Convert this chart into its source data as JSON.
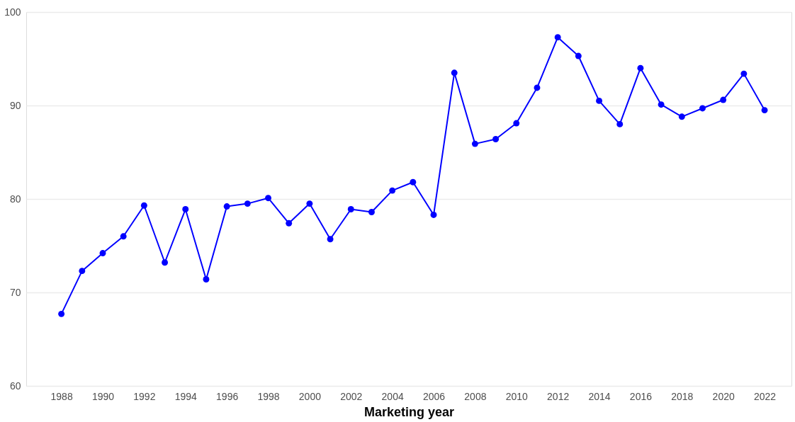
{
  "chart_data": {
    "type": "line",
    "xlabel": "Marketing year",
    "x": [
      1988,
      1989,
      1990,
      1991,
      1992,
      1993,
      1994,
      1995,
      1996,
      1997,
      1998,
      1999,
      2000,
      2001,
      2002,
      2003,
      2004,
      2005,
      2006,
      2007,
      2008,
      2009,
      2010,
      2011,
      2012,
      2013,
      2014,
      2015,
      2016,
      2017,
      2018,
      2019,
      2020,
      2021,
      2022
    ],
    "series": [
      {
        "color": "#0000ff",
        "values": [
          67.7,
          72.3,
          74.2,
          76.0,
          79.3,
          73.2,
          78.9,
          71.4,
          79.2,
          79.5,
          80.1,
          77.4,
          79.5,
          75.7,
          78.9,
          78.6,
          80.9,
          81.8,
          78.3,
          93.5,
          85.9,
          86.4,
          88.1,
          91.9,
          97.3,
          95.3,
          90.5,
          88.0,
          94.0,
          90.1,
          88.8,
          89.7,
          90.6,
          93.4,
          89.5
        ]
      }
    ],
    "xlim": [
      1986.3,
      2023.3
    ],
    "xticks": [
      1988,
      1990,
      1992,
      1994,
      1996,
      1998,
      2000,
      2002,
      2004,
      2006,
      2008,
      2010,
      2012,
      2014,
      2016,
      2018,
      2020,
      2022
    ],
    "ylim": [
      60,
      100
    ],
    "yticks": [
      60,
      70,
      80,
      90,
      100
    ],
    "grid": "y",
    "marker": "circle",
    "line_style": "solid"
  }
}
